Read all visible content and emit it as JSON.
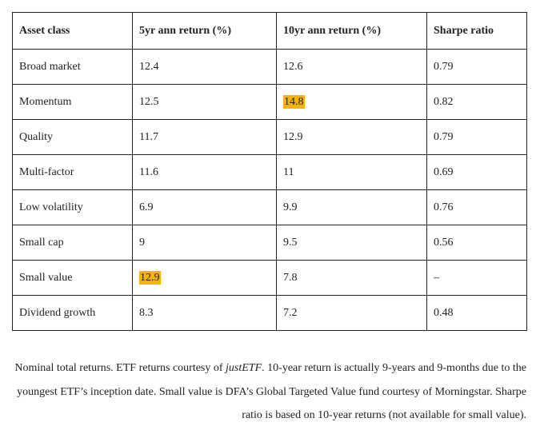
{
  "table": {
    "headers": [
      "Asset class",
      "5yr ann return (%)",
      "10yr ann return (%)",
      "Sharpe ratio"
    ],
    "rows": [
      {
        "asset": "Broad market",
        "r5": "12.4",
        "r10": "12.6",
        "sharpe": "0.79"
      },
      {
        "asset": "Momentum",
        "r5": "12.5",
        "r10": "14.8",
        "sharpe": "0.82"
      },
      {
        "asset": "Quality",
        "r5": "11.7",
        "r10": "12.9",
        "sharpe": "0.79"
      },
      {
        "asset": "Multi-factor",
        "r5": "11.6",
        "r10": "11",
        "sharpe": "0.69"
      },
      {
        "asset": "Low volatility",
        "r5": "6.9",
        "r10": "9.9",
        "sharpe": "0.76"
      },
      {
        "asset": "Small cap",
        "r5": "9",
        "r10": "9.5",
        "sharpe": "0.56"
      },
      {
        "asset": "Small value",
        "r5": "12.9",
        "r10": "7.8",
        "sharpe": "–"
      },
      {
        "asset": "Dividend growth",
        "r5": "8.3",
        "r10": "7.2",
        "sharpe": "0.48"
      }
    ],
    "highlight_color": "#f5b400"
  },
  "caption": {
    "part1": "Nominal total returns. ETF returns courtesy of ",
    "link_text": "justETF",
    "part2": ". 10-year return is actually 9-years and 9-months due to the youngest ETF’s inception date. Small value is DFA’s Global Targeted Value fund courtesy of Morningstar. Sharpe ratio is based on 10-year returns (not available for small value)."
  }
}
